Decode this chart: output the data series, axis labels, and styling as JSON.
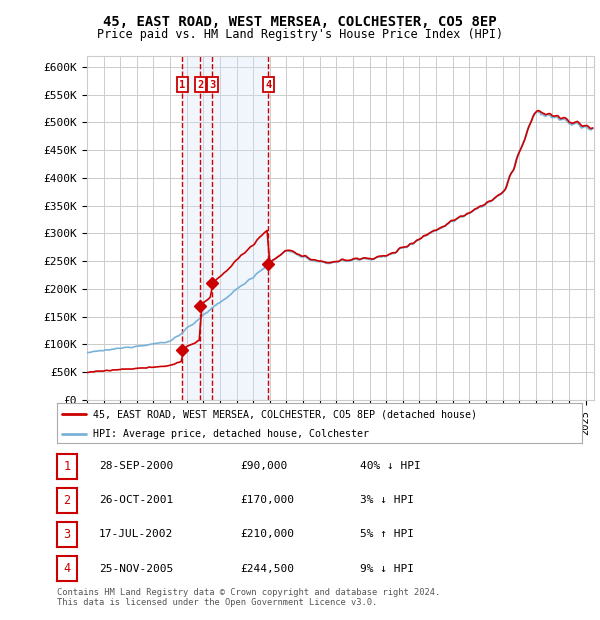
{
  "title1": "45, EAST ROAD, WEST MERSEA, COLCHESTER, CO5 8EP",
  "title2": "Price paid vs. HM Land Registry's House Price Index (HPI)",
  "ylabel_ticks": [
    "£0",
    "£50K",
    "£100K",
    "£150K",
    "£200K",
    "£250K",
    "£300K",
    "£350K",
    "£400K",
    "£450K",
    "£500K",
    "£550K",
    "£600K"
  ],
  "ytick_values": [
    0,
    50000,
    100000,
    150000,
    200000,
    250000,
    300000,
    350000,
    400000,
    450000,
    500000,
    550000,
    600000
  ],
  "ylim": [
    0,
    620000
  ],
  "xlim_start": 1995.0,
  "xlim_end": 2025.5,
  "sale_dates": [
    2000.74,
    2001.81,
    2002.54,
    2005.9
  ],
  "sale_prices": [
    90000,
    170000,
    210000,
    244500
  ],
  "sale_labels": [
    "1",
    "2",
    "3",
    "4"
  ],
  "hpi_color": "#7ab3d8",
  "price_color": "#cc0000",
  "vline_color": "#cc0000",
  "shade_color": "#d0e4f7",
  "legend_label_price": "45, EAST ROAD, WEST MERSEA, COLCHESTER, CO5 8EP (detached house)",
  "legend_label_hpi": "HPI: Average price, detached house, Colchester",
  "table_rows": [
    [
      "1",
      "28-SEP-2000",
      "£90,000",
      "40% ↓ HPI"
    ],
    [
      "2",
      "26-OCT-2001",
      "£170,000",
      "3% ↓ HPI"
    ],
    [
      "3",
      "17-JUL-2002",
      "£210,000",
      "5% ↑ HPI"
    ],
    [
      "4",
      "25-NOV-2005",
      "£244,500",
      "9% ↓ HPI"
    ]
  ],
  "footnote": "Contains HM Land Registry data © Crown copyright and database right 2024.\nThis data is licensed under the Open Government Licence v3.0.",
  "background_color": "#ffffff",
  "grid_color": "#cccccc"
}
